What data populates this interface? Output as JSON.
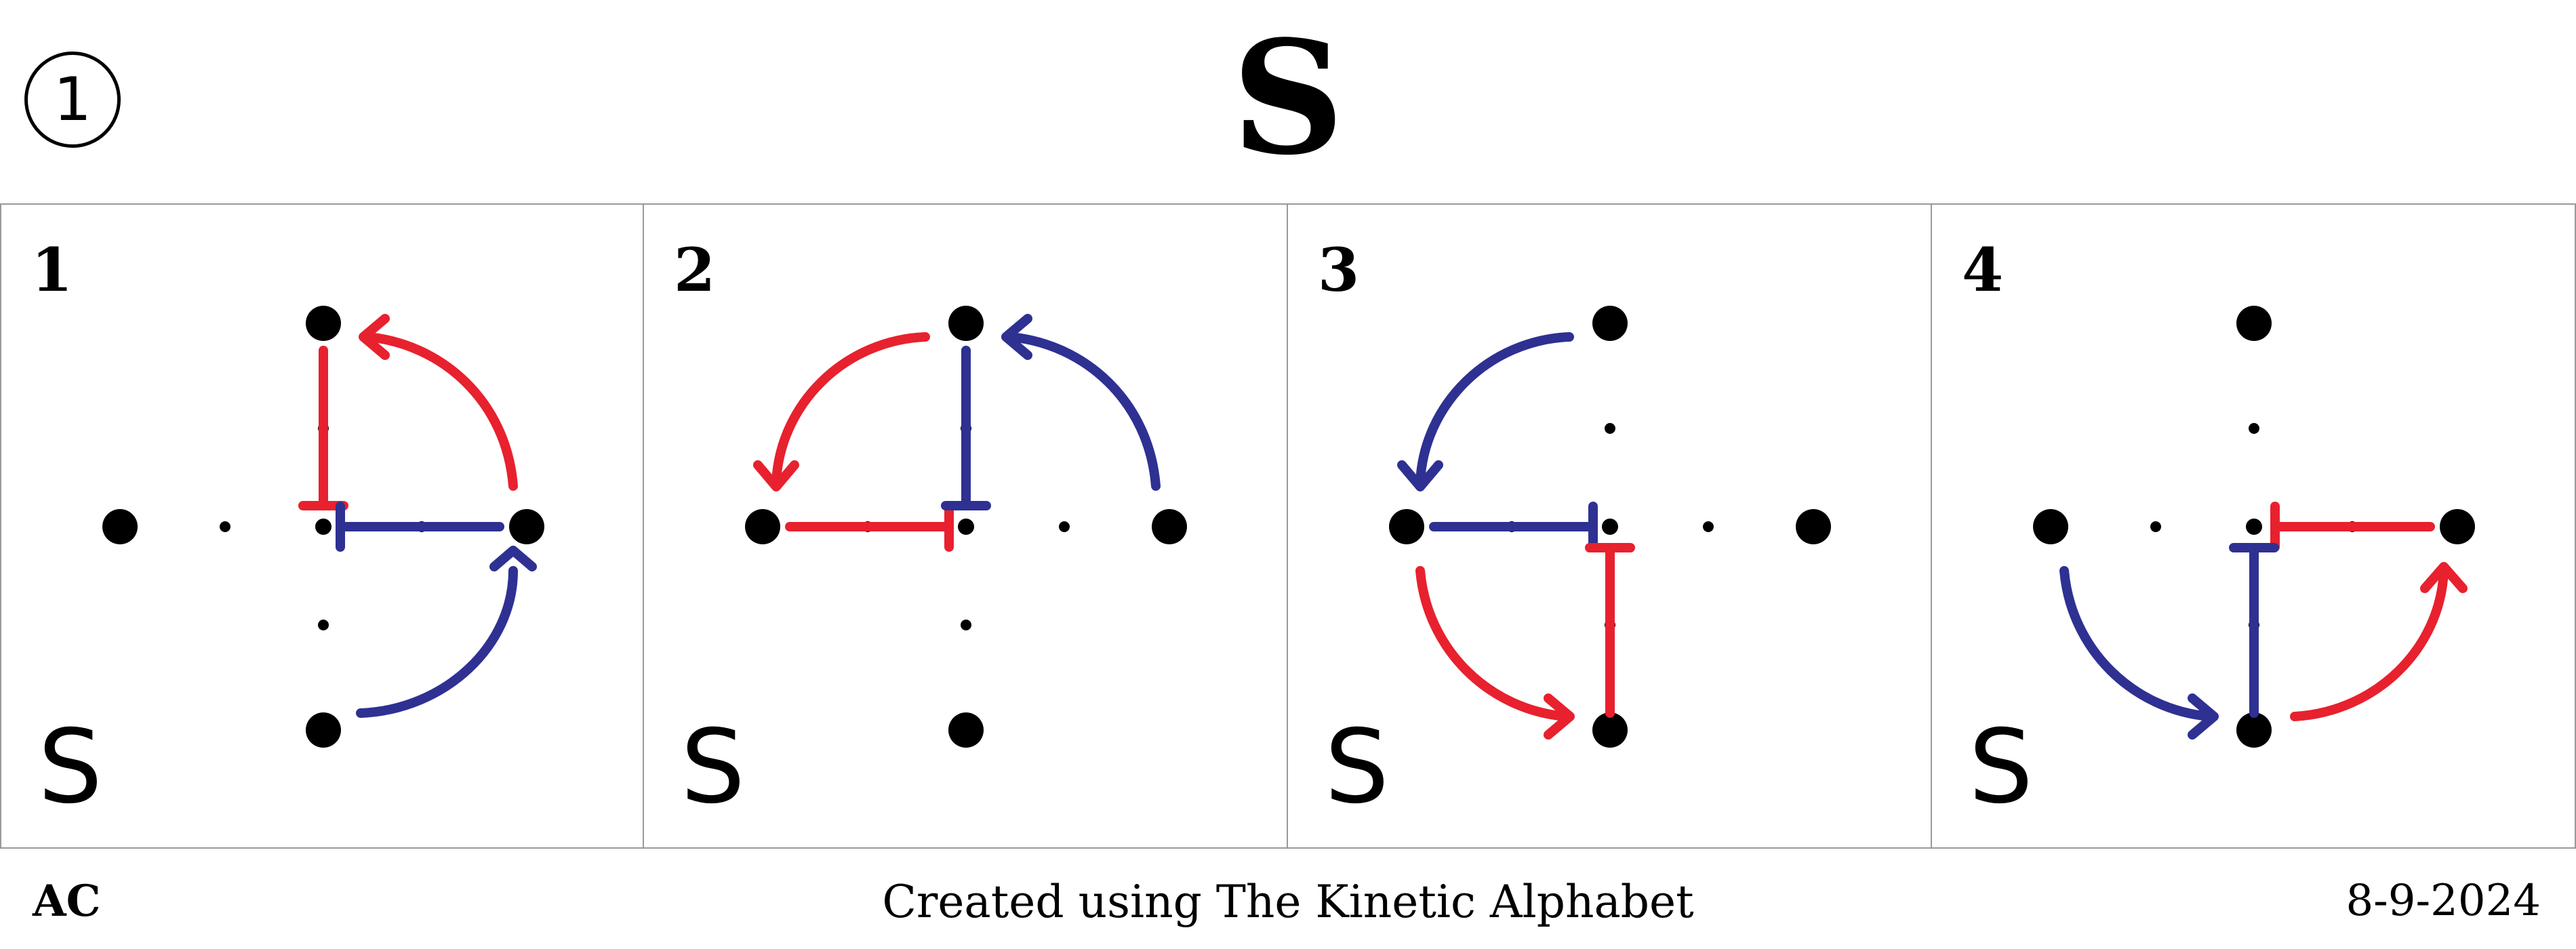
{
  "header": {
    "number": "1",
    "title": "S"
  },
  "panels": [
    {
      "number": "1",
      "letter": "S"
    },
    {
      "number": "2",
      "letter": "S"
    },
    {
      "number": "3",
      "letter": "S"
    },
    {
      "number": "4",
      "letter": "S"
    }
  ],
  "footer": {
    "left": "AC",
    "center": "Created using The Kinetic Alphabet",
    "right": "8-9-2024"
  },
  "colors": {
    "red": "#e8212e",
    "blue": "#2e3192",
    "dot": "#000000"
  }
}
